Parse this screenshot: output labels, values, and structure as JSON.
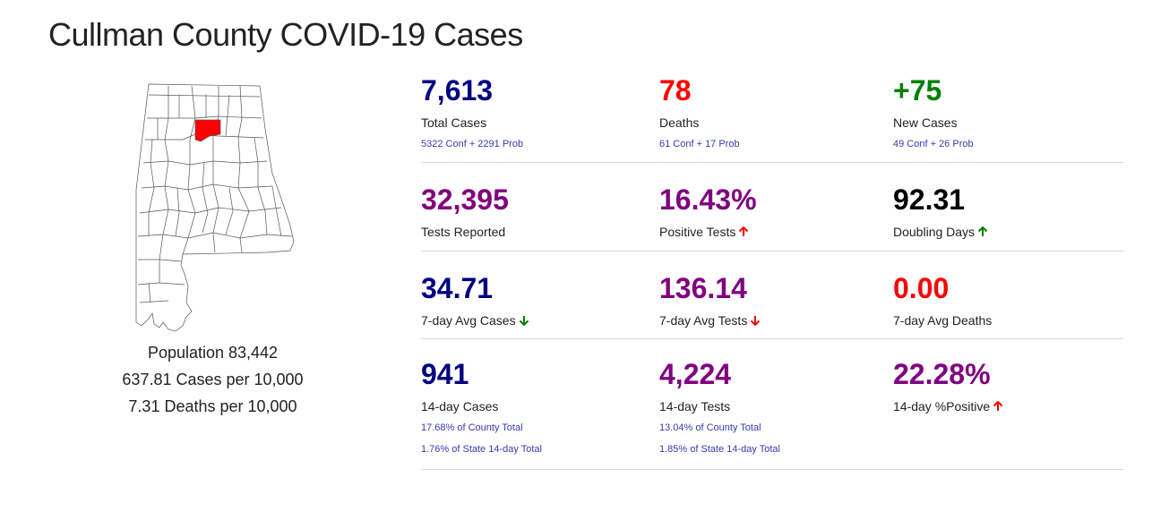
{
  "page": {
    "title": "Cullman County COVID-19 Cases"
  },
  "colors": {
    "navy": "#000080",
    "red": "#ff0000",
    "green": "#008000",
    "purple": "#800080",
    "black": "#000000",
    "link": "#3a3ab0"
  },
  "population": {
    "population_line": "Population 83,442",
    "cases_per": "637.81 Cases per 10,000",
    "deaths_per": "7.31 Deaths per 10,000"
  },
  "stats": {
    "total_cases": {
      "value": "7,613",
      "label": "Total Cases",
      "sub": "5322 Conf + 2291 Prob"
    },
    "deaths": {
      "value": "78",
      "label": "Deaths",
      "sub": "61 Conf + 17 Prob"
    },
    "new_cases": {
      "value": "+75",
      "label": "New Cases",
      "sub": "49 Conf + 26 Prob"
    },
    "tests_reported": {
      "value": "32,395",
      "label": "Tests Reported"
    },
    "positive_tests": {
      "value": "16.43%",
      "label": "Positive Tests",
      "trend": "up"
    },
    "doubling_days": {
      "value": "92.31",
      "label": "Doubling Days",
      "trend": "up"
    },
    "avg_cases_7": {
      "value": "34.71",
      "label": "7-day Avg Cases",
      "trend": "down"
    },
    "avg_tests_7": {
      "value": "136.14",
      "label": "7-day Avg Tests",
      "trend": "down"
    },
    "avg_deaths_7": {
      "value": "0.00",
      "label": "7-day Avg Deaths"
    },
    "cases_14": {
      "value": "941",
      "label": "14-day Cases",
      "sub1": "17.68% of County Total",
      "sub2": "1.76% of State 14-day Total"
    },
    "tests_14": {
      "value": "4,224",
      "label": "14-day Tests",
      "sub1": "13.04% of County Total",
      "sub2": "1.85% of State 14-day Total"
    },
    "positive_14": {
      "value": "22.28%",
      "label": "14-day %Positive",
      "trend": "up"
    }
  }
}
